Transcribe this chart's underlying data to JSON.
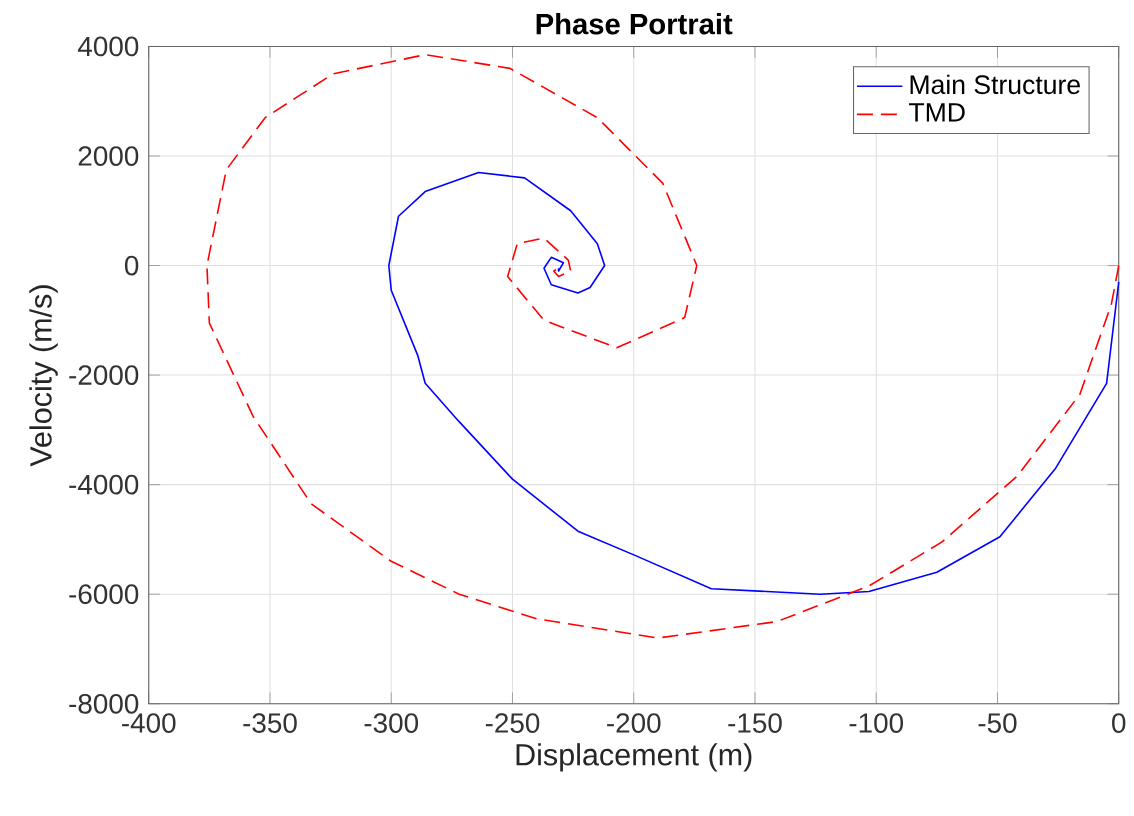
{
  "chart_data": {
    "type": "line",
    "title": "Phase Portrait",
    "xlabel": "Displacement (m)",
    "ylabel": "Velocity (m/s)",
    "xlim": [
      -400,
      0
    ],
    "ylim": [
      -8000,
      4000
    ],
    "xticks": [
      -400,
      -350,
      -300,
      -250,
      -200,
      -150,
      -100,
      -50,
      0
    ],
    "yticks": [
      -8000,
      -6000,
      -4000,
      -2000,
      0,
      2000,
      4000
    ],
    "grid": true,
    "legend": "top right",
    "marker": "none",
    "series": [
      {
        "name": "Main Structure",
        "color": "#0000ff",
        "line_style": "solid",
        "x": [
          0,
          -5,
          -26,
          -49,
          -75,
          -103,
          -123,
          -168,
          -199,
          -223,
          -250,
          -272,
          -286,
          -289,
          -300,
          -301,
          -297,
          -286,
          -264,
          -245,
          -226,
          -215,
          -212,
          -218,
          -223,
          -234,
          -237,
          -234,
          -229,
          -231,
          -231
        ],
        "values": [
          -300,
          -2150,
          -3700,
          -4950,
          -5600,
          -5950,
          -6000,
          -5900,
          -5300,
          -4850,
          -3900,
          -2850,
          -2150,
          -1650,
          -450,
          0,
          900,
          1350,
          1700,
          1600,
          1000,
          400,
          0,
          -400,
          -500,
          -350,
          -50,
          150,
          50,
          -100,
          -50
        ]
      },
      {
        "name": "TMD",
        "color": "#ff0000",
        "line_style": "dashed",
        "x": [
          0,
          -3,
          -16,
          -42,
          -73,
          -103,
          -141,
          -190,
          -240,
          -272,
          -300,
          -333,
          -357,
          -375,
          -376,
          -368,
          -352,
          -324,
          -286,
          -251,
          -215,
          -188,
          -174,
          -179,
          -207,
          -237,
          -252,
          -248,
          -237,
          -227,
          -226,
          -231,
          -233,
          -231
        ],
        "values": [
          0,
          -700,
          -2350,
          -3850,
          -5050,
          -5850,
          -6500,
          -6800,
          -6450,
          -6000,
          -5400,
          -4350,
          -2750,
          -1050,
          0,
          1750,
          2700,
          3500,
          3850,
          3600,
          2700,
          1500,
          0,
          -950,
          -1500,
          -1000,
          -200,
          400,
          500,
          100,
          -100,
          -200,
          -100,
          -50
        ]
      }
    ]
  }
}
